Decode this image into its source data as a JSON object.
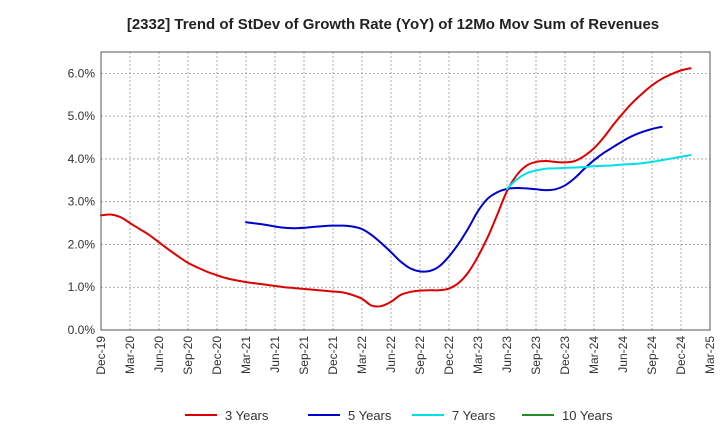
{
  "chart_data": {
    "type": "line",
    "title": "[2332]  Trend of StDev of Growth Rate (YoY) of 12Mo Mov Sum of Revenues",
    "xlabel": "",
    "ylabel": "",
    "ylim": [
      0,
      6.5
    ],
    "yticks": [
      0,
      1,
      2,
      3,
      4,
      5,
      6
    ],
    "ytick_labels": [
      "0.0%",
      "1.0%",
      "2.0%",
      "3.0%",
      "4.0%",
      "5.0%",
      "6.0%"
    ],
    "x_tick_labels": [
      "Dec-19",
      "Mar-20",
      "Jun-20",
      "Sep-20",
      "Dec-20",
      "Mar-21",
      "Jun-21",
      "Sep-21",
      "Dec-21",
      "Mar-22",
      "Jun-22",
      "Sep-22",
      "Dec-22",
      "Mar-23",
      "Jun-23",
      "Sep-23",
      "Dec-23",
      "Mar-24",
      "Jun-24",
      "Sep-24",
      "Dec-24",
      "Mar-25"
    ],
    "x_months_start": "Dec-19",
    "x_months_total": 63,
    "grid": true,
    "legend_position": "bottom",
    "series": [
      {
        "name": "3 Years",
        "color": "#dd0000",
        "points": [
          [
            0,
            2.68
          ],
          [
            1,
            2.7
          ],
          [
            2,
            2.64
          ],
          [
            3,
            2.5
          ],
          [
            4,
            2.36
          ],
          [
            5,
            2.22
          ],
          [
            6,
            2.05
          ],
          [
            7,
            1.88
          ],
          [
            8,
            1.72
          ],
          [
            9,
            1.57
          ],
          [
            10,
            1.46
          ],
          [
            11,
            1.36
          ],
          [
            12,
            1.28
          ],
          [
            13,
            1.21
          ],
          [
            14,
            1.16
          ],
          [
            15,
            1.12
          ],
          [
            16,
            1.09
          ],
          [
            17,
            1.06
          ],
          [
            18,
            1.03
          ],
          [
            19,
            1.0
          ],
          [
            20,
            0.98
          ],
          [
            21,
            0.96
          ],
          [
            22,
            0.94
          ],
          [
            23,
            0.92
          ],
          [
            24,
            0.9
          ],
          [
            25,
            0.88
          ],
          [
            26,
            0.82
          ],
          [
            27,
            0.73
          ],
          [
            28,
            0.57
          ],
          [
            29,
            0.56
          ],
          [
            30,
            0.66
          ],
          [
            31,
            0.82
          ],
          [
            32,
            0.89
          ],
          [
            33,
            0.92
          ],
          [
            34,
            0.93
          ],
          [
            35,
            0.93
          ],
          [
            36,
            0.97
          ],
          [
            37,
            1.1
          ],
          [
            38,
            1.35
          ],
          [
            39,
            1.72
          ],
          [
            40,
            2.17
          ],
          [
            41,
            2.7
          ],
          [
            42,
            3.25
          ],
          [
            43,
            3.62
          ],
          [
            44,
            3.84
          ],
          [
            45,
            3.93
          ],
          [
            46,
            3.95
          ],
          [
            47,
            3.93
          ],
          [
            48,
            3.92
          ],
          [
            49,
            3.95
          ],
          [
            50,
            4.07
          ],
          [
            51,
            4.25
          ],
          [
            52,
            4.5
          ],
          [
            53,
            4.8
          ],
          [
            54,
            5.07
          ],
          [
            55,
            5.32
          ],
          [
            56,
            5.53
          ],
          [
            57,
            5.72
          ],
          [
            58,
            5.87
          ],
          [
            59,
            5.98
          ],
          [
            60,
            6.07
          ],
          [
            61,
            6.12
          ]
        ]
      },
      {
        "name": "5 Years",
        "color": "#0000cc",
        "points": [
          [
            15,
            2.52
          ],
          [
            16,
            2.49
          ],
          [
            17,
            2.46
          ],
          [
            18,
            2.42
          ],
          [
            19,
            2.39
          ],
          [
            20,
            2.38
          ],
          [
            21,
            2.39
          ],
          [
            22,
            2.41
          ],
          [
            23,
            2.43
          ],
          [
            24,
            2.44
          ],
          [
            25,
            2.44
          ],
          [
            26,
            2.42
          ],
          [
            27,
            2.36
          ],
          [
            28,
            2.22
          ],
          [
            29,
            2.03
          ],
          [
            30,
            1.82
          ],
          [
            31,
            1.6
          ],
          [
            32,
            1.44
          ],
          [
            33,
            1.37
          ],
          [
            34,
            1.38
          ],
          [
            35,
            1.49
          ],
          [
            36,
            1.72
          ],
          [
            37,
            2.02
          ],
          [
            38,
            2.38
          ],
          [
            39,
            2.78
          ],
          [
            40,
            3.07
          ],
          [
            41,
            3.22
          ],
          [
            42,
            3.3
          ],
          [
            43,
            3.32
          ],
          [
            44,
            3.31
          ],
          [
            45,
            3.29
          ],
          [
            46,
            3.27
          ],
          [
            47,
            3.29
          ],
          [
            48,
            3.38
          ],
          [
            49,
            3.55
          ],
          [
            50,
            3.77
          ],
          [
            51,
            3.97
          ],
          [
            52,
            4.14
          ],
          [
            53,
            4.28
          ],
          [
            54,
            4.42
          ],
          [
            55,
            4.54
          ],
          [
            56,
            4.63
          ],
          [
            57,
            4.7
          ],
          [
            58,
            4.75
          ]
        ]
      },
      {
        "name": "7 Years",
        "color": "#00e0e8",
        "points": [
          [
            42,
            3.3
          ],
          [
            43,
            3.52
          ],
          [
            44,
            3.66
          ],
          [
            45,
            3.73
          ],
          [
            46,
            3.77
          ],
          [
            47,
            3.78
          ],
          [
            48,
            3.79
          ],
          [
            49,
            3.8
          ],
          [
            50,
            3.81
          ],
          [
            51,
            3.83
          ],
          [
            52,
            3.84
          ],
          [
            53,
            3.85
          ],
          [
            54,
            3.87
          ],
          [
            55,
            3.88
          ],
          [
            56,
            3.9
          ],
          [
            57,
            3.93
          ],
          [
            58,
            3.97
          ],
          [
            59,
            4.01
          ],
          [
            60,
            4.05
          ],
          [
            61,
            4.09
          ]
        ]
      },
      {
        "name": "10 Years",
        "color": "#228b22",
        "points": []
      }
    ]
  }
}
